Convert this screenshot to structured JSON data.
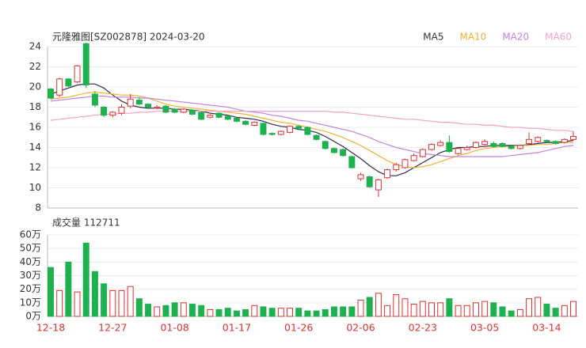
{
  "chart_data": [
    {
      "type": "candlestick",
      "title": "元隆雅图[SZ002878] 2024-03-20",
      "ylim": [
        8,
        24
      ],
      "yticks": [
        8,
        10,
        12,
        14,
        16,
        18,
        20,
        22,
        24
      ],
      "grid": true,
      "up_color": "#e03030",
      "down_color": "#1db14f",
      "open": [
        19.8,
        19.2,
        20.8,
        20.5,
        24.3,
        19.3,
        18.0,
        17.2,
        17.4,
        18.1,
        18.7,
        18.3,
        17.9,
        18.1,
        17.8,
        17.5,
        17.7,
        17.5,
        17.0,
        17.4,
        17.1,
        16.9,
        16.6,
        16.2,
        16.4,
        15.4,
        15.3,
        15.5,
        16.1,
        16.0,
        15.2,
        14.6,
        13.9,
        13.8,
        13.1,
        10.9,
        11.1,
        9.8,
        11.0,
        11.8,
        12.0,
        12.7,
        13.1,
        13.8,
        14.2,
        14.5,
        13.4,
        13.8,
        14.0,
        14.3,
        14.4,
        14.4,
        14.1,
        13.9,
        14.4,
        14.6,
        14.7,
        14.6,
        14.5,
        14.8
      ],
      "high": [
        19.9,
        20.9,
        20.9,
        22.2,
        24.4,
        19.6,
        18.1,
        17.6,
        18.3,
        19.3,
        19.0,
        18.4,
        18.2,
        18.2,
        17.9,
        17.9,
        17.8,
        17.6,
        17.3,
        17.5,
        17.2,
        17.0,
        16.7,
        16.6,
        16.5,
        15.5,
        15.7,
        16.2,
        16.2,
        16.1,
        15.3,
        14.7,
        14.0,
        13.9,
        13.2,
        11.5,
        11.2,
        10.9,
        11.9,
        12.5,
        12.9,
        13.4,
        13.9,
        14.4,
        14.7,
        15.2,
        14.0,
        14.2,
        14.6,
        14.8,
        14.6,
        14.5,
        14.2,
        14.3,
        15.5,
        15.1,
        14.8,
        14.7,
        14.9,
        15.6
      ],
      "low": [
        18.8,
        19.0,
        20.0,
        20.4,
        19.9,
        18.0,
        17.0,
        17.0,
        17.2,
        17.9,
        18.2,
        17.8,
        17.8,
        17.4,
        17.4,
        17.4,
        17.2,
        16.7,
        16.9,
        16.9,
        16.7,
        16.5,
        16.2,
        16.1,
        15.2,
        15.2,
        15.2,
        15.4,
        15.8,
        15.2,
        14.7,
        13.8,
        13.4,
        13.1,
        11.9,
        10.7,
        10.0,
        9.1,
        10.9,
        11.6,
        11.9,
        12.6,
        13.0,
        13.7,
        14.1,
        13.5,
        13.3,
        13.7,
        13.9,
        14.2,
        14.0,
        14.0,
        13.8,
        13.8,
        14.3,
        14.5,
        14.5,
        14.3,
        14.4,
        14.7
      ],
      "close": [
        18.9,
        20.8,
        20.1,
        22.1,
        20.2,
        18.2,
        17.2,
        17.5,
        18.0,
        18.8,
        18.3,
        18.0,
        18.0,
        17.5,
        17.5,
        17.8,
        17.3,
        16.8,
        17.2,
        17.0,
        16.8,
        16.6,
        16.3,
        16.5,
        15.3,
        15.3,
        15.6,
        16.1,
        15.9,
        15.3,
        14.8,
        13.9,
        13.5,
        13.2,
        12.0,
        11.3,
        10.1,
        10.8,
        11.8,
        12.3,
        12.8,
        13.2,
        13.8,
        14.3,
        14.5,
        13.6,
        13.9,
        14.0,
        14.5,
        14.6,
        14.1,
        14.1,
        13.9,
        14.2,
        14.8,
        15.0,
        14.6,
        14.4,
        14.8,
        15.1
      ],
      "series": [
        {
          "name": "MA5",
          "color": "#2a2a55",
          "values": [
            19.3,
            19.6,
            19.9,
            20.2,
            20.3,
            20.3,
            19.9,
            19.2,
            18.6,
            18.2,
            18.0,
            17.9,
            17.9,
            17.9,
            17.8,
            17.8,
            17.7,
            17.6,
            17.4,
            17.3,
            17.2,
            17.0,
            16.9,
            16.8,
            16.6,
            16.3,
            16.1,
            16.0,
            15.8,
            15.7,
            15.5,
            15.1,
            14.6,
            14.1,
            13.5,
            12.9,
            12.2,
            11.6,
            11.2,
            11.2,
            11.5,
            12.0,
            12.5,
            13.0,
            13.5,
            13.8,
            14.0,
            14.0,
            14.1,
            14.1,
            14.2,
            14.2,
            14.2,
            14.2,
            14.3,
            14.4,
            14.5,
            14.5,
            14.6,
            14.7
          ]
        },
        {
          "name": "MA10",
          "color": "#f2b234",
          "values": [
            18.8,
            18.9,
            19.0,
            19.2,
            19.4,
            19.5,
            19.4,
            19.3,
            19.2,
            19.2,
            19.1,
            18.9,
            18.6,
            18.3,
            18.1,
            18.0,
            17.9,
            17.8,
            17.7,
            17.6,
            17.5,
            17.4,
            17.3,
            17.1,
            16.9,
            16.7,
            16.5,
            16.4,
            16.2,
            16.0,
            15.8,
            15.6,
            15.3,
            15.0,
            14.6,
            14.2,
            13.7,
            13.2,
            12.7,
            12.3,
            12.1,
            12.0,
            12.1,
            12.3,
            12.6,
            12.9,
            13.2,
            13.4,
            13.7,
            13.9,
            14.0,
            14.1,
            14.1,
            14.2,
            14.2,
            14.3,
            14.3,
            14.4,
            14.5,
            14.5
          ]
        },
        {
          "name": "MA20",
          "color": "#c184e0",
          "values": [
            18.6,
            18.7,
            18.8,
            18.9,
            19.0,
            19.1,
            19.1,
            19.0,
            19.0,
            19.0,
            18.9,
            18.9,
            18.8,
            18.7,
            18.6,
            18.5,
            18.4,
            18.3,
            18.2,
            18.1,
            18.0,
            17.8,
            17.6,
            17.5,
            17.4,
            17.2,
            17.1,
            16.9,
            16.7,
            16.6,
            16.4,
            16.2,
            16.0,
            15.8,
            15.6,
            15.3,
            15.0,
            14.6,
            14.3,
            14.0,
            13.8,
            13.6,
            13.4,
            13.3,
            13.2,
            13.1,
            13.1,
            13.1,
            13.1,
            13.1,
            13.1,
            13.1,
            13.2,
            13.3,
            13.4,
            13.5,
            13.7,
            13.9,
            14.1,
            14.2
          ]
        },
        {
          "name": "MA60",
          "color": "#f3a3c9",
          "values": [
            16.7,
            16.8,
            16.9,
            17.0,
            17.1,
            17.2,
            17.3,
            17.3,
            17.4,
            17.4,
            17.5,
            17.5,
            17.6,
            17.6,
            17.6,
            17.6,
            17.6,
            17.6,
            17.6,
            17.6,
            17.6,
            17.6,
            17.6,
            17.6,
            17.6,
            17.6,
            17.6,
            17.6,
            17.6,
            17.6,
            17.6,
            17.6,
            17.5,
            17.5,
            17.4,
            17.3,
            17.2,
            17.1,
            17.0,
            16.9,
            16.8,
            16.8,
            16.7,
            16.6,
            16.5,
            16.5,
            16.4,
            16.3,
            16.3,
            16.2,
            16.2,
            16.1,
            16.0,
            16.0,
            15.9,
            15.9,
            15.8,
            15.7,
            15.7,
            15.6
          ]
        }
      ]
    },
    {
      "type": "volume",
      "title": "成交量 112711",
      "ylim": [
        0,
        60
      ],
      "yticks": [
        {
          "value": 0,
          "label": "0万"
        },
        {
          "value": 10,
          "label": "10万"
        },
        {
          "value": 20,
          "label": "20万"
        },
        {
          "value": 30,
          "label": "30万"
        },
        {
          "value": 40,
          "label": "40万"
        },
        {
          "value": 50,
          "label": "50万"
        },
        {
          "value": 60,
          "label": "60万"
        }
      ],
      "categories": [
        "12-18",
        null,
        null,
        null,
        null,
        null,
        null,
        "12-27",
        null,
        null,
        null,
        null,
        null,
        null,
        "01-08",
        null,
        null,
        null,
        null,
        null,
        null,
        "01-17",
        null,
        null,
        null,
        null,
        null,
        null,
        "01-26",
        null,
        null,
        null,
        null,
        null,
        null,
        "02-06",
        null,
        null,
        null,
        null,
        null,
        null,
        "02-23",
        null,
        null,
        null,
        null,
        null,
        null,
        "03-05",
        null,
        null,
        null,
        null,
        null,
        null,
        "03-14",
        null,
        null,
        null
      ],
      "values": [
        36,
        19,
        40,
        18,
        54,
        33,
        24,
        19,
        19,
        22,
        13,
        9,
        7,
        8,
        10,
        10,
        9,
        8,
        5,
        5,
        6,
        4,
        5,
        8,
        7,
        6,
        6,
        6,
        6,
        4,
        4,
        5,
        7,
        7,
        7,
        12,
        14,
        17,
        8,
        16,
        13,
        9,
        11,
        10,
        10,
        13,
        8,
        8,
        10,
        11,
        10,
        7,
        4,
        5,
        13,
        14,
        9,
        6,
        8,
        11
      ]
    }
  ]
}
